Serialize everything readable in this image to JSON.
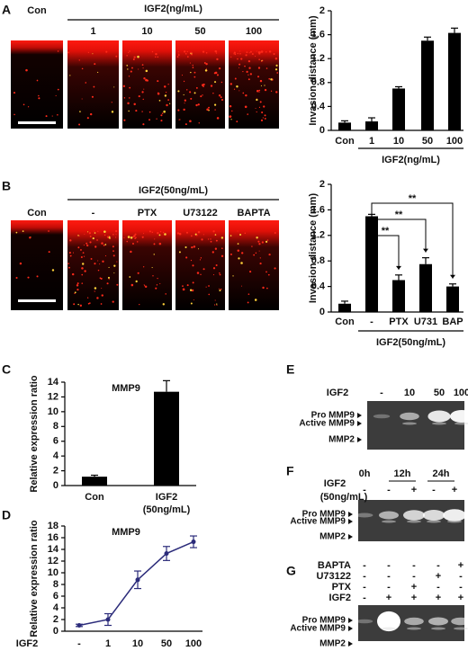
{
  "panel_labels": [
    "A",
    "B",
    "C",
    "D",
    "E",
    "F",
    "G"
  ],
  "micrographs": [
    {
      "group_label": "IGF2(ng/mL)",
      "labels": [
        "Con",
        "1",
        "10",
        "50",
        "100"
      ]
    },
    {
      "group_label": "IGF2(50ng/mL)",
      "labels": [
        "Con",
        "-",
        "PTX",
        "U73122",
        "BAPTA"
      ]
    }
  ],
  "chart_data": [
    {
      "type": "bar",
      "y_label": "Invasion distance (mm)",
      "group_label": "IGF2(ng/mL)",
      "categories": [
        "Con",
        "1",
        "10",
        "50",
        "100"
      ],
      "values": [
        0.13,
        0.15,
        0.7,
        1.5,
        1.63
      ],
      "errors": [
        0.03,
        0.06,
        0.03,
        0.06,
        0.08
      ],
      "color": "#000000",
      "ylim": [
        0,
        2
      ],
      "yticks": [
        0,
        0.4,
        0.8,
        1.2,
        1.6,
        2
      ]
    },
    {
      "type": "bar",
      "y_label": "Invasion distance (mm)",
      "group_label": "IGF2(50ng/mL)",
      "categories": [
        "Con",
        "-",
        "PTX",
        "U731",
        "BAP"
      ],
      "values": [
        0.13,
        1.5,
        0.5,
        0.75,
        0.4
      ],
      "errors": [
        0.04,
        0.03,
        0.08,
        0.1,
        0.04
      ],
      "annotations": [
        "**",
        "**",
        "**"
      ],
      "color": "#000000",
      "ylim": [
        0,
        2
      ],
      "yticks": [
        0,
        0.4,
        0.8,
        1.2,
        1.6,
        2
      ]
    },
    {
      "type": "bar",
      "title": "MMP9",
      "y_label": "Relative expression ratio",
      "categories": [
        "Con",
        "IGF2 (50ng/mL)"
      ],
      "values": [
        1.2,
        12.7
      ],
      "errors": [
        0.2,
        1.5
      ],
      "color": "#000000",
      "ylim": [
        0,
        14
      ],
      "yticks": [
        0,
        2,
        4,
        6,
        8,
        10,
        12,
        14
      ]
    },
    {
      "type": "line",
      "title": "MMP9",
      "y_label": "Relative expression ratio",
      "x_label": "IGF2",
      "categories": [
        "-",
        "1",
        "10",
        "50",
        "100"
      ],
      "values": [
        1,
        2,
        8.8,
        13.3,
        15.3
      ],
      "errors": [
        0.2,
        1,
        1.5,
        1.2,
        1
      ],
      "color": "#2b2b7a",
      "ylim": [
        0,
        18
      ],
      "yticks": [
        0,
        2,
        4,
        6,
        8,
        10,
        12,
        14,
        16,
        18
      ]
    }
  ],
  "gels": [
    {
      "row_labels": [
        "IGF2"
      ],
      "lanes": [
        [
          "-",
          "10",
          "50",
          "100"
        ]
      ],
      "band_labels": [
        "Pro MMP9",
        "Active MMP9",
        "MMP2"
      ]
    },
    {
      "time_labels": [
        "0h",
        "12h",
        "24h"
      ],
      "row_labels": [
        "IGF2",
        "(50ng/mL)"
      ],
      "lanes": [
        [
          "-",
          "-",
          "+",
          "-",
          "+"
        ]
      ],
      "band_labels": [
        "Pro MMP9",
        "Active MMP9",
        "MMP2"
      ]
    },
    {
      "row_labels": [
        "BAPTA",
        "U73122",
        "PTX",
        "IGF2"
      ],
      "lanes": [
        [
          "-",
          "-",
          "-",
          "-",
          "+"
        ],
        [
          "-",
          "-",
          "-",
          "+",
          "-"
        ],
        [
          "-",
          "-",
          "+",
          "-",
          "-"
        ],
        [
          "-",
          "+",
          "+",
          "+",
          "+"
        ]
      ],
      "band_labels": [
        "Pro MMP9",
        "Active MMP9",
        "MMP2"
      ]
    }
  ]
}
